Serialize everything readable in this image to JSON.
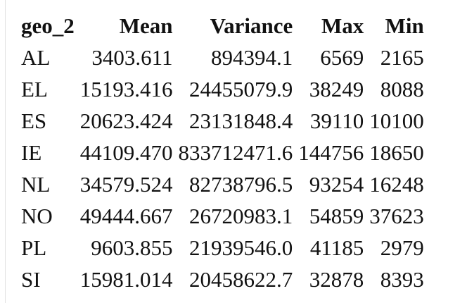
{
  "table": {
    "headers": [
      "geo_2",
      "Mean",
      "Variance",
      "Max",
      "Min"
    ],
    "rows": [
      [
        "AL",
        "3403.611",
        "894394.1",
        "6569",
        "2165"
      ],
      [
        "EL",
        "15193.416",
        "24455079.9",
        "38249",
        "8088"
      ],
      [
        "ES",
        "20623.424",
        "23131848.4",
        "39110",
        "10100"
      ],
      [
        "IE",
        "44109.470",
        "833712471.6",
        "144756",
        "18650"
      ],
      [
        "NL",
        "34579.524",
        "82738796.5",
        "93254",
        "16248"
      ],
      [
        "NO",
        "49444.667",
        "26720983.1",
        "54859",
        "37623"
      ],
      [
        "PL",
        "9603.855",
        "21939546.0",
        "41185",
        "2979"
      ],
      [
        "SI",
        "15981.014",
        "20458622.7",
        "32878",
        "8393"
      ]
    ]
  }
}
